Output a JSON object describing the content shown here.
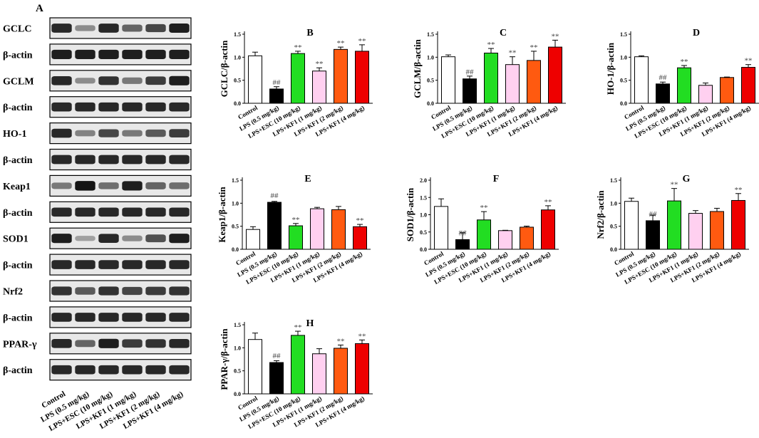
{
  "figure": {
    "panel_A_label": "A",
    "blot_rows": [
      {
        "label": "GCLC",
        "intensities": [
          0.85,
          0.35,
          0.85,
          0.55,
          0.7,
          0.9
        ]
      },
      {
        "label": "β-actin",
        "intensities": [
          0.9,
          0.9,
          0.9,
          0.9,
          0.9,
          0.9
        ]
      },
      {
        "label": "GCLM",
        "intensities": [
          0.85,
          0.35,
          0.8,
          0.45,
          0.75,
          0.9
        ]
      },
      {
        "label": "β-actin",
        "intensities": [
          0.85,
          0.85,
          0.85,
          0.85,
          0.85,
          0.85
        ]
      },
      {
        "label": "HO-1",
        "intensities": [
          0.85,
          0.4,
          0.7,
          0.45,
          0.6,
          0.75
        ]
      },
      {
        "label": "β-actin",
        "intensities": [
          0.85,
          0.85,
          0.85,
          0.85,
          0.85,
          0.85
        ]
      },
      {
        "label": "Keap1",
        "intensities": [
          0.45,
          0.95,
          0.5,
          0.9,
          0.55,
          0.5
        ]
      },
      {
        "label": "β-actin",
        "intensities": [
          0.85,
          0.85,
          0.85,
          0.85,
          0.85,
          0.85
        ]
      },
      {
        "label": "SOD1",
        "intensities": [
          0.9,
          0.25,
          0.85,
          0.35,
          0.65,
          0.9
        ]
      },
      {
        "label": "β-actin",
        "intensities": [
          0.85,
          0.85,
          0.85,
          0.85,
          0.85,
          0.85
        ]
      },
      {
        "label": "Nrf2",
        "intensities": [
          0.8,
          0.6,
          0.8,
          0.7,
          0.75,
          0.8
        ]
      },
      {
        "label": "β-actin",
        "intensities": [
          0.85,
          0.85,
          0.85,
          0.85,
          0.85,
          0.85
        ]
      },
      {
        "label": "PPAR-γ",
        "intensities": [
          0.85,
          0.55,
          0.9,
          0.75,
          0.8,
          0.85
        ]
      },
      {
        "label": "β-actin",
        "intensities": [
          0.85,
          0.85,
          0.85,
          0.85,
          0.85,
          0.85
        ]
      }
    ],
    "group_labels": [
      "Control",
      "LPS (0.5 mg/kg)",
      "LPS+ESC (10 mg/kg)",
      "LPS+KF1 (1 mg/kg)",
      "LPS+KF1 (2 mg/kg)",
      "LPS+KF1 (4 mg/kg)"
    ],
    "bar_colors": [
      "#ffffff",
      "#000000",
      "#22dd22",
      "#ffd0f0",
      "#ff5a10",
      "#ee0000"
    ],
    "annotation_color": "#444444"
  },
  "chart_data": [
    {
      "panel": "B",
      "type": "bar",
      "ylabel": "GCLC/β-actin",
      "ylim": [
        0,
        1.5
      ],
      "yticks": [
        "0.0",
        "0.5",
        "1.0",
        "1.5"
      ],
      "categories": [
        "Control",
        "LPS (0.5 mg/kg)",
        "LPS+ESC (10 mg/kg)",
        "LPS+KF1 (1 mg/kg)",
        "LPS+KF1 (2 mg/kg)",
        "LPS+KF1 (4 mg/kg)"
      ],
      "values": [
        1.03,
        0.31,
        1.08,
        0.7,
        1.17,
        1.13
      ],
      "errors": [
        0.08,
        0.05,
        0.05,
        0.07,
        0.05,
        0.14
      ],
      "annotations": [
        "",
        "##",
        "**",
        "**",
        "**",
        "**"
      ]
    },
    {
      "panel": "C",
      "type": "bar",
      "ylabel": "GCLM/β-actin",
      "ylim": [
        0,
        1.5
      ],
      "yticks": [
        "0.0",
        "0.5",
        "1.0",
        "1.5"
      ],
      "categories": [
        "Control",
        "LPS (0.5 mg/kg)",
        "LPS+ESC (10 mg/kg)",
        "LPS+KF1 (1 mg/kg)",
        "LPS+KF1 (2 mg/kg)",
        "LPS+KF1 (4 mg/kg)"
      ],
      "values": [
        1.01,
        0.53,
        1.09,
        0.84,
        0.93,
        1.22
      ],
      "errors": [
        0.04,
        0.06,
        0.1,
        0.17,
        0.2,
        0.15
      ],
      "annotations": [
        "",
        "##",
        "**",
        "**",
        "**",
        "**"
      ]
    },
    {
      "panel": "D",
      "type": "bar",
      "ylabel": "HO-1/β-actin",
      "ylim": [
        0,
        1.5
      ],
      "yticks": [
        "0.0",
        "0.5",
        "1.0",
        "1.5"
      ],
      "categories": [
        "Control",
        "LPS (0.5 mg/kg)",
        "LPS+ESC (10 mg/kg)",
        "LPS+KF1 (1 mg/kg)",
        "LPS+KF1 (2 mg/kg)",
        "LPS+KF1 (4 mg/kg)"
      ],
      "values": [
        1.01,
        0.42,
        0.77,
        0.39,
        0.56,
        0.78
      ],
      "errors": [
        0.02,
        0.04,
        0.05,
        0.05,
        0.01,
        0.06
      ],
      "annotations": [
        "",
        "##",
        "**",
        "",
        "",
        "**"
      ]
    },
    {
      "panel": "E",
      "type": "bar",
      "ylabel": "Keap1/β-actin",
      "ylim": [
        0,
        1.5
      ],
      "yticks": [
        "0.0",
        "0.5",
        "1.0",
        "1.5"
      ],
      "categories": [
        "Control",
        "LPS (0.5 mg/kg)",
        "LPS+ESC (10 mg/kg)",
        "LPS+KF1 (1 mg/kg)",
        "LPS+KF1 (2 mg/kg)",
        "LPS+KF1 (4 mg/kg)"
      ],
      "values": [
        0.43,
        1.02,
        0.51,
        0.88,
        0.86,
        0.49
      ],
      "errors": [
        0.06,
        0.02,
        0.05,
        0.03,
        0.07,
        0.05
      ],
      "annotations": [
        "",
        "##",
        "**",
        "",
        "",
        "**"
      ]
    },
    {
      "panel": "F",
      "type": "bar",
      "ylabel": "SOD1/β-actin",
      "ylim": [
        0,
        2.0
      ],
      "yticks": [
        "0.0",
        "0.5",
        "1.0",
        "1.5",
        "2.0"
      ],
      "categories": [
        "Control",
        "LPS (0.5 mg/kg)",
        "LPS+ESC (10 mg/kg)",
        "LPS+KF1 (1 mg/kg)",
        "LPS+KF1 (2 mg/kg)",
        "LPS+KF1 (4 mg/kg)"
      ],
      "values": [
        1.24,
        0.28,
        0.85,
        0.54,
        0.64,
        1.14
      ],
      "errors": [
        0.22,
        0.2,
        0.24,
        0.01,
        0.03,
        0.12
      ],
      "annotations": [
        "",
        "##",
        "**",
        "",
        "",
        "**"
      ]
    },
    {
      "panel": "G",
      "type": "bar",
      "ylabel": "Nrf2/β-actin",
      "ylim": [
        0,
        1.5
      ],
      "yticks": [
        "0.0",
        "0.5",
        "1.0",
        "1.5"
      ],
      "categories": [
        "Control",
        "LPS (0.5 mg/kg)",
        "LPS+ESC (10 mg/kg)",
        "LPS+KF1 (1 mg/kg)",
        "LPS+KF1 (2 mg/kg)",
        "LPS+KF1 (4 mg/kg)"
      ],
      "values": [
        1.04,
        0.62,
        1.05,
        0.78,
        0.82,
        1.06
      ],
      "errors": [
        0.07,
        0.12,
        0.27,
        0.06,
        0.07,
        0.15
      ],
      "annotations": [
        "",
        "##",
        "**",
        "",
        "",
        "**"
      ]
    },
    {
      "panel": "H",
      "type": "bar",
      "ylabel": "PPAR-γ/β-actin",
      "ylim": [
        0,
        1.5
      ],
      "yticks": [
        "0.0",
        "0.5",
        "1.0",
        "1.5"
      ],
      "categories": [
        "Control",
        "LPS (0.5 mg/kg)",
        "LPS+ESC (10 mg/kg)",
        "LPS+KF1 (1 mg/kg)",
        "LPS+KF1 (2 mg/kg)",
        "LPS+KF1 (4 mg/kg)"
      ],
      "values": [
        1.18,
        0.68,
        1.27,
        0.87,
        0.99,
        1.09
      ],
      "errors": [
        0.14,
        0.04,
        0.09,
        0.11,
        0.07,
        0.08
      ],
      "annotations": [
        "",
        "##",
        "**",
        "",
        "**",
        "**"
      ]
    }
  ]
}
